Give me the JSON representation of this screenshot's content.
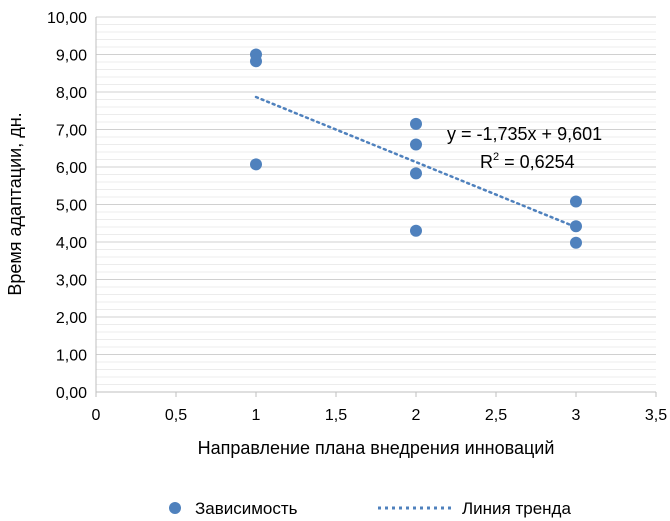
{
  "chart_data": {
    "type": "scatter",
    "xlabel": "Направление плана внедрения инноваций",
    "ylabel": "Время адаптации, дн.",
    "xlim": [
      0,
      3.5
    ],
    "ylim": [
      0,
      10
    ],
    "x_ticks": [
      "0",
      "0,5",
      "1",
      "1,5",
      "2",
      "2,5",
      "3",
      "3,5"
    ],
    "y_ticks": [
      "0,00",
      "1,00",
      "2,00",
      "3,00",
      "4,00",
      "5,00",
      "6,00",
      "7,00",
      "8,00",
      "9,00",
      "10,00"
    ],
    "grid": true,
    "series": [
      {
        "name": "Зависимость",
        "color": "#4F81BD",
        "points": [
          {
            "x": 1,
            "y": 9.0
          },
          {
            "x": 1,
            "y": 8.82
          },
          {
            "x": 1,
            "y": 6.07
          },
          {
            "x": 2,
            "y": 7.15
          },
          {
            "x": 2,
            "y": 6.6
          },
          {
            "x": 2,
            "y": 5.83
          },
          {
            "x": 2,
            "y": 4.3
          },
          {
            "x": 3,
            "y": 5.08
          },
          {
            "x": 3,
            "y": 4.42
          },
          {
            "x": 3,
            "y": 3.98
          }
        ]
      }
    ],
    "trendline": {
      "name": "Линия тренда",
      "color": "#4F81BD",
      "style": "dotted",
      "slope": -1.735,
      "intercept": 9.601,
      "x_range": [
        1,
        3
      ],
      "equation": "y = -1,735x + 9,601",
      "r2_prefix": "R",
      "r2_sup": "2",
      "r2_value": " = 0,6254"
    },
    "legend": {
      "placement": "bottom",
      "items": [
        "Зависимость",
        "Линия тренда"
      ]
    }
  }
}
